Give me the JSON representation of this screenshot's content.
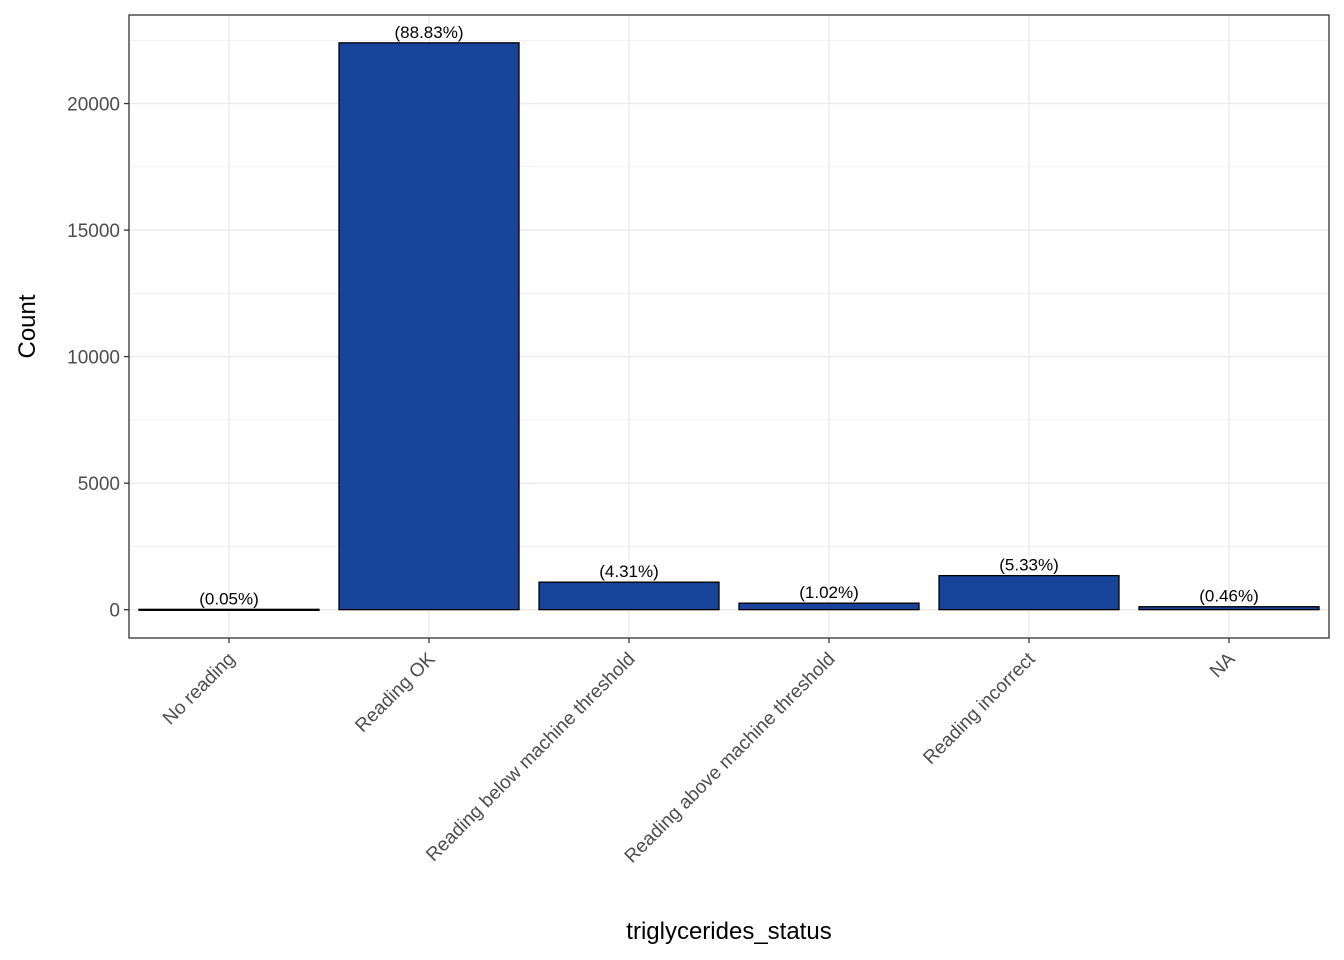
{
  "colors": {
    "bar_fill": "#17439B",
    "bar_stroke": "#000000",
    "grid": "#EBEBEB",
    "panel_border": "#333333",
    "tick_text": "#4D4D4D"
  },
  "chart_data": {
    "type": "bar",
    "xlabel": "triglycerides_status",
    "ylabel": "Count",
    "categories": [
      "No reading",
      "Reading OK",
      "Reading below machine threshold",
      "Reading above machine threshold",
      "Reading incorrect",
      "NA"
    ],
    "values": [
      13,
      22400,
      1087,
      257,
      1345,
      116
    ],
    "labels": [
      "(0.05%)",
      "(88.83%)",
      "(4.31%)",
      "(1.02%)",
      "(5.33%)",
      "(0.46%)"
    ],
    "ylim": [
      -1120,
      23500
    ],
    "yticks": [
      0,
      5000,
      10000,
      15000,
      20000
    ],
    "ytick_labels": [
      "0",
      "5000",
      "10000",
      "15000",
      "20000"
    ],
    "grid": true,
    "legend": "none"
  }
}
